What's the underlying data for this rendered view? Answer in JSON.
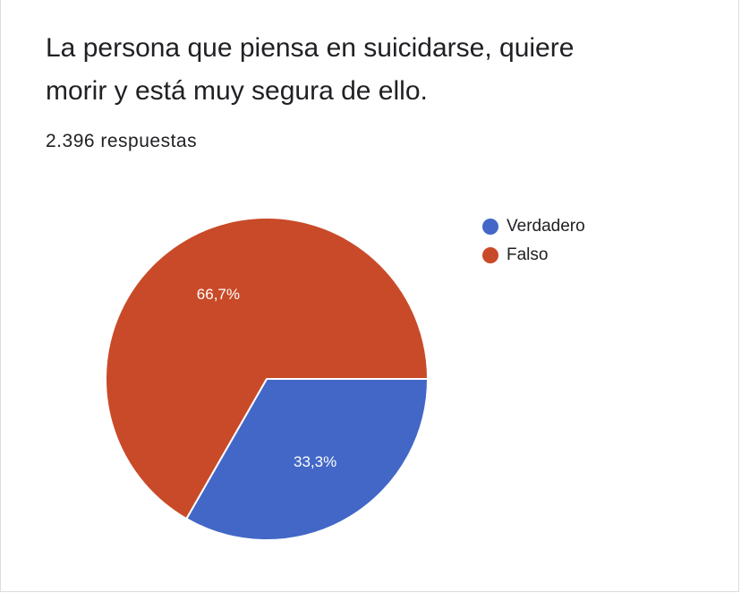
{
  "question": {
    "line1": "La persona que piensa en suicidarse, quiere",
    "line2": "morir y está muy segura de ello.",
    "responses": "2.396 respuestas"
  },
  "chart_data": {
    "type": "pie",
    "slices": [
      {
        "name": "Verdadero",
        "value": 33.3,
        "label": "33,3%",
        "color": "#4267c7"
      },
      {
        "name": "Falso",
        "value": 66.7,
        "label": "66,7%",
        "color": "#c94a28"
      }
    ],
    "start": "3 o'clock, clockwise",
    "legend": "right"
  }
}
